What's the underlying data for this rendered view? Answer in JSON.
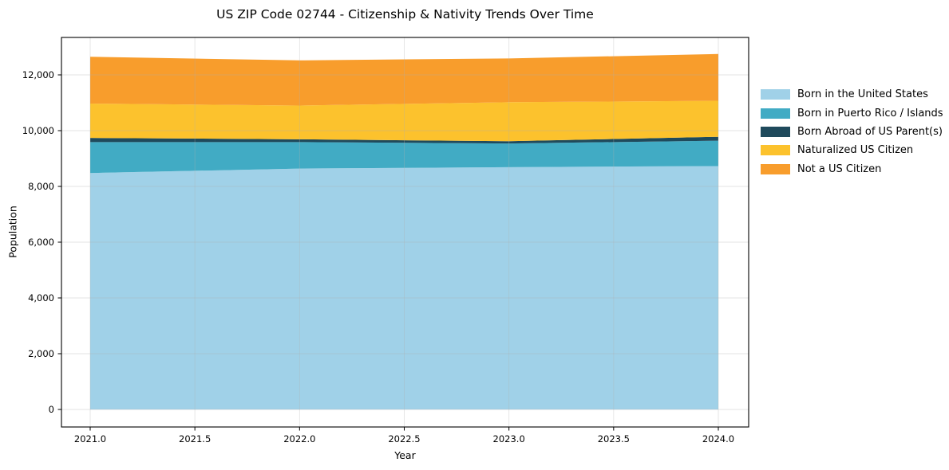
{
  "title": "US ZIP Code 02744 - Citizenship & Nativity Trends Over Time",
  "chart_data": {
    "type": "area",
    "stacked": true,
    "title": "US ZIP Code 02744 - Citizenship & Nativity Trends Over Time",
    "xlabel": "Year",
    "ylabel": "Population",
    "x": [
      2021,
      2022,
      2023,
      2024
    ],
    "series": [
      {
        "name": "Born in the United States",
        "color": "#a0d1e8",
        "values": [
          8480,
          8640,
          8690,
          8730
        ]
      },
      {
        "name": "Born in Puerto Rico / Islands",
        "color": "#41abc4",
        "values": [
          1110,
          950,
          850,
          910
        ]
      },
      {
        "name": "Born Abroad of US Parent(s)",
        "color": "#1f4a5c",
        "values": [
          150,
          100,
          80,
          140
        ]
      },
      {
        "name": "Naturalized US Citizen",
        "color": "#fcc22d",
        "values": [
          1230,
          1210,
          1400,
          1290
        ]
      },
      {
        "name": "Not a US Citizen",
        "color": "#f89d2c",
        "values": [
          1680,
          1620,
          1570,
          1680
        ]
      }
    ],
    "stack_totals": [
      12650,
      12520,
      12590,
      12750
    ],
    "x_ticks": [
      2021.0,
      2021.5,
      2022.0,
      2022.5,
      2023.0,
      2023.5,
      2024.0
    ],
    "x_tick_labels": [
      "2021.0",
      "2021.5",
      "2022.0",
      "2022.5",
      "2023.0",
      "2023.5",
      "2024.0"
    ],
    "y_ticks": [
      0,
      2000,
      4000,
      6000,
      8000,
      10000,
      12000
    ],
    "y_tick_labels": [
      "0",
      "2,000",
      "4,000",
      "6,000",
      "8,000",
      "10,000",
      "12,000"
    ],
    "xlim": [
      2020.86,
      2024.15
    ],
    "ylim": [
      -630,
      13340
    ],
    "grid": true,
    "grid_color": "rgba(176,176,176,0.35)",
    "spine_color": "#000000",
    "legend_position": "right"
  }
}
